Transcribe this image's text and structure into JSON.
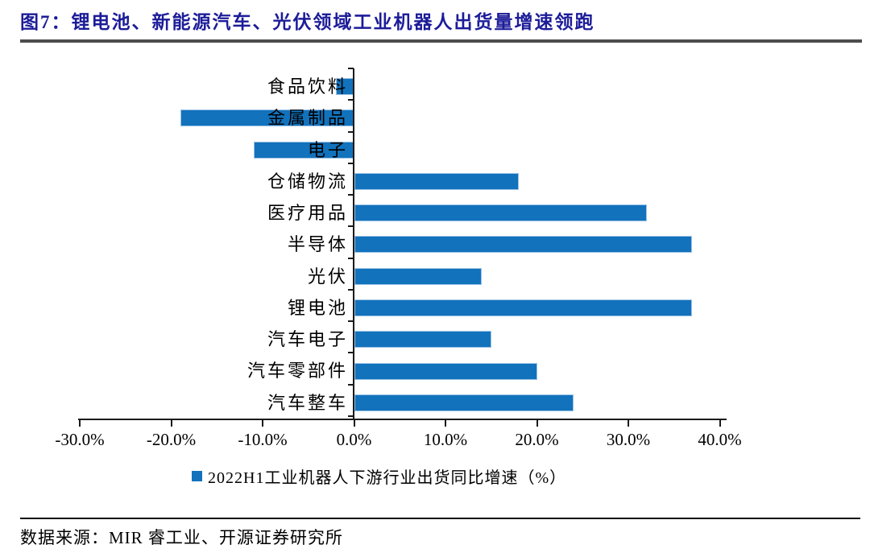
{
  "figure": {
    "title": "图7：锂电池、新能源汽车、光伏领域工业机器人出货量增速领跑",
    "source": "数据来源：MIR 睿工业、开源证券研究所"
  },
  "colors": {
    "bar": "#1272bc",
    "bar_border": "#9cc3e6",
    "title_text": "#1c1c99",
    "title_rule": "#4d4d4d",
    "axis": "#1a1a1a"
  },
  "chart_data": {
    "type": "bar",
    "orientation": "horizontal",
    "categories": [
      "食品饮料",
      "金属制品",
      "电子",
      "仓储物流",
      "医疗用品",
      "半导体",
      "光伏",
      "锂电池",
      "汽车电子",
      "汽车零部件",
      "汽车整车"
    ],
    "values": [
      -2,
      -19,
      -11,
      18,
      32,
      37,
      14,
      37,
      15,
      20,
      24
    ],
    "unit": "%",
    "xlim": [
      -30,
      40
    ],
    "x_tick_values": [
      -30,
      -20,
      -10,
      0,
      10,
      20,
      30,
      40
    ],
    "x_tick_labels": [
      "-30.0%",
      "-20.0%",
      "-10.0%",
      "0.0%",
      "10.0%",
      "20.0%",
      "30.0%",
      "40.0%"
    ],
    "grid": false,
    "legend_position": "bottom",
    "legend": [
      "2022H1工业机器人下游行业出货同比增速（%）"
    ]
  }
}
